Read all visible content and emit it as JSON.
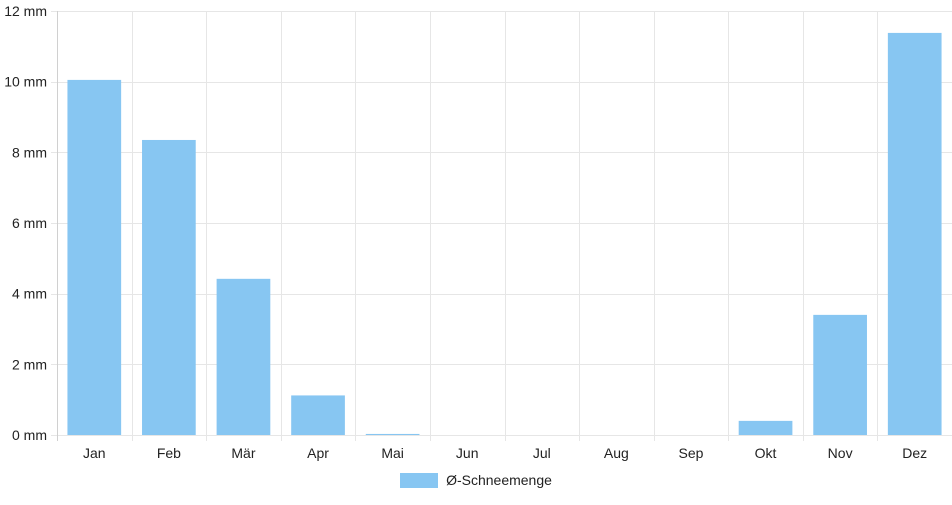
{
  "chart_data": {
    "type": "bar",
    "categories": [
      "Jan",
      "Feb",
      "Mär",
      "Apr",
      "Mai",
      "Jun",
      "Jul",
      "Aug",
      "Sep",
      "Okt",
      "Nov",
      "Dez"
    ],
    "series": [
      {
        "name": "Ø-Schneemenge",
        "values": [
          10.05,
          8.35,
          4.42,
          1.12,
          0.03,
          0,
          0,
          0,
          0,
          0.4,
          3.4,
          11.38
        ]
      }
    ],
    "ylim": [
      0,
      12
    ],
    "yticks": [
      0,
      2,
      4,
      6,
      8,
      10,
      12
    ],
    "y_tick_labels": [
      "0 mm",
      "2 mm",
      "4 mm",
      "6 mm",
      "8 mm",
      "10 mm",
      "12 mm"
    ],
    "grid": true,
    "legend_position": "bottom"
  },
  "colors": {
    "bar": "#87c6f2",
    "grid": "#e6e6e6",
    "axis": "#d0d0d0"
  }
}
